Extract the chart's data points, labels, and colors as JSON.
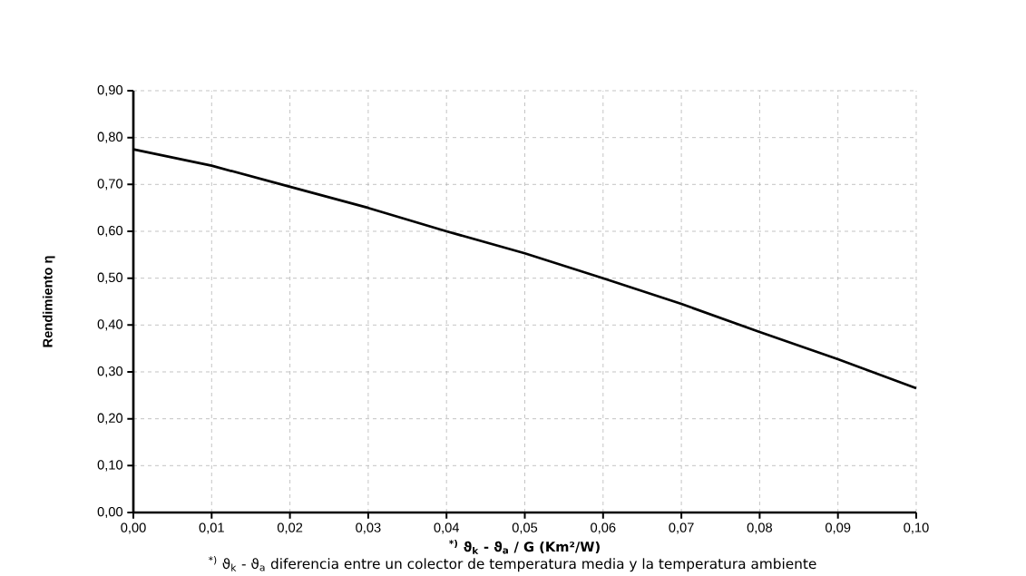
{
  "chart_data": {
    "type": "line",
    "xlabel": "$^{*)}$ ϑ$_{k}$ - ϑ$_{a}$ / G (Km²/W)",
    "ylabel": "Rendimiento η",
    "annotations": [
      "$^{*)}$ ϑ$_{k}$ - ϑ$_{a}$ diferencia entre un colector de temperatura media y la temperatura ambiente"
    ],
    "x": [
      0,
      0.01,
      0.02,
      0.03,
      0.04,
      0.05,
      0.06,
      0.07,
      0.08,
      0.09,
      0.1
    ],
    "series": [
      {
        "color": "#000000",
        "values": [
          0.775,
          0.74,
          0.695,
          0.65,
          0.6,
          0.553,
          0.5,
          0.445,
          0.385,
          0.327,
          0.265
        ]
      }
    ],
    "xlim": [
      0,
      0.1
    ],
    "ylim": [
      0,
      0.9
    ],
    "xticks": [
      {
        "value": 0,
        "label": "0,00"
      },
      {
        "value": 0.01,
        "label": "0,01"
      },
      {
        "value": 0.02,
        "label": "0,02"
      },
      {
        "value": 0.03,
        "label": "0,03"
      },
      {
        "value": 0.04,
        "label": "0,04"
      },
      {
        "value": 0.05,
        "label": "0,05"
      },
      {
        "value": 0.06,
        "label": "0,06"
      },
      {
        "value": 0.07,
        "label": "0,07"
      },
      {
        "value": 0.08,
        "label": "0,08"
      },
      {
        "value": 0.09,
        "label": "0,09"
      },
      {
        "value": 0.1,
        "label": "0,10"
      }
    ],
    "yticks": [
      {
        "value": 0,
        "label": "0,00"
      },
      {
        "value": 0.1,
        "label": "0,10"
      },
      {
        "value": 0.2,
        "label": "0,20"
      },
      {
        "value": 0.3,
        "label": "0,30"
      },
      {
        "value": 0.4,
        "label": "0,40"
      },
      {
        "value": 0.5,
        "label": "0,50"
      },
      {
        "value": 0.6,
        "label": "0,60"
      },
      {
        "value": 0.7,
        "label": "0,70"
      },
      {
        "value": 0.8,
        "label": "0,80"
      },
      {
        "value": 0.9,
        "label": "0,90"
      }
    ],
    "grid": true,
    "marker": "none",
    "line_style": "solid"
  }
}
